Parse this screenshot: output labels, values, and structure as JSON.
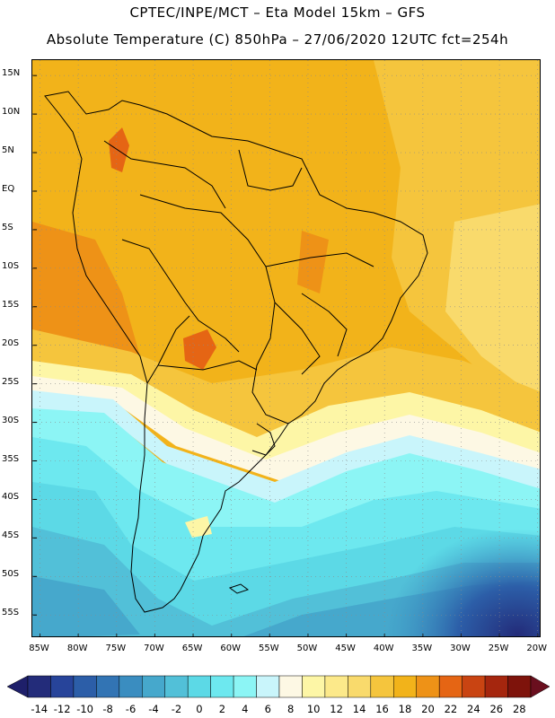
{
  "header": {
    "line1": "CPTEC/INPE/MCT –  Eta Model 15km – GFS",
    "line2": "Absolute Temperature (C) 850hPa – 27/06/2020 12UTC fct=254h"
  },
  "map": {
    "region": "South America",
    "variable": "Absolute Temperature (C) 850hPa",
    "lat_range": [
      -58,
      17
    ],
    "lon_range": [
      -86,
      -19.5
    ],
    "lat_labels": [
      "15N",
      "10N",
      "5N",
      "EQ",
      "5S",
      "10S",
      "15S",
      "20S",
      "25S",
      "30S",
      "35S",
      "40S",
      "45S",
      "50S",
      "55S"
    ],
    "lon_labels": [
      "85W",
      "80W",
      "75W",
      "70W",
      "65W",
      "60W",
      "55W",
      "50W",
      "45W",
      "40W",
      "35W",
      "30W",
      "25W",
      "20W"
    ],
    "ocean_base_color": "#f2b31a"
  },
  "colorbar": {
    "labels": [
      "-14",
      "-12",
      "-10",
      "-8",
      "-6",
      "-4",
      "-2",
      "0",
      "2",
      "4",
      "6",
      "8",
      "10",
      "12",
      "14",
      "16",
      "18",
      "20",
      "22",
      "24",
      "26",
      "28"
    ],
    "colors": [
      "#232c7a",
      "#27449a",
      "#2c5ea8",
      "#3274b4",
      "#3a8dc0",
      "#46a8cc",
      "#52c0d8",
      "#5cd9e6",
      "#6de8ef",
      "#8cf5f5",
      "#c9f5fb",
      "#fdf8e4",
      "#fdf6a6",
      "#fce98a",
      "#f9da6c",
      "#f5c53d",
      "#f2b31a",
      "#ee9217",
      "#e56514",
      "#c94412",
      "#a5260e",
      "#7e130b"
    ],
    "low_arrow_color": "#1e1f6a",
    "high_arrow_color": "#6a0f1e"
  }
}
